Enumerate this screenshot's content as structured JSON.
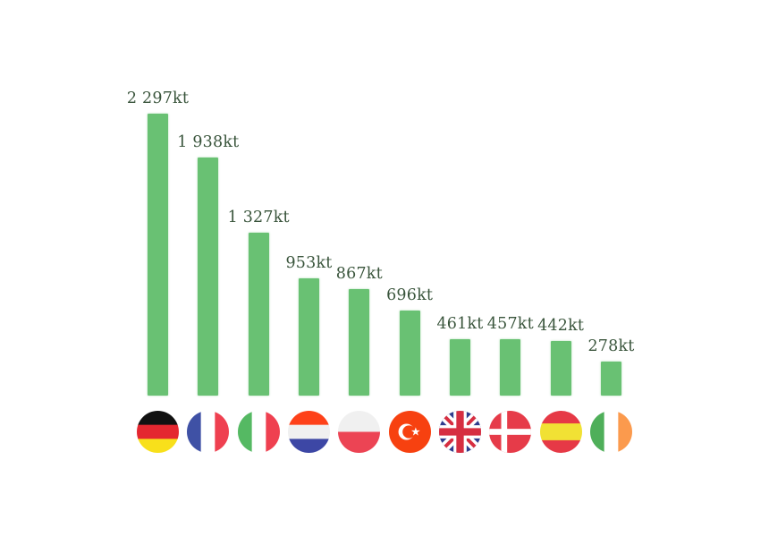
{
  "chart_data": {
    "type": "bar",
    "title": "",
    "unit": "kt",
    "categories": [
      "Germany",
      "France",
      "Italy",
      "Netherlands",
      "Poland",
      "Turkey",
      "United Kingdom",
      "Denmark",
      "Spain",
      "Ireland"
    ],
    "values": [
      2297,
      1938,
      1327,
      953,
      867,
      696,
      461,
      457,
      442,
      278
    ],
    "value_labels": [
      "2 297kt",
      "1 938kt",
      "1 327kt",
      "953kt",
      "867kt",
      "696kt",
      "461kt",
      "457kt",
      "442kt",
      "278kt"
    ],
    "xlabel": "",
    "ylabel": "",
    "ylim": [
      0,
      2297
    ],
    "grid": false,
    "legend": false,
    "axes_visible": false,
    "x_axis_tick_style": "circular country flag icons",
    "bar_color": "#69c173",
    "label_color": "#3a553c",
    "background_color": "#ffffff"
  },
  "flags": [
    {
      "country": "Germany",
      "style": "bands-h",
      "colors": [
        "#111111",
        "#e42730",
        "#f8e01b"
      ],
      "fractions": [
        0.333,
        0.334,
        0.333
      ]
    },
    {
      "country": "France",
      "style": "bands-v",
      "colors": [
        "#3f51a5",
        "#ffffff",
        "#ef4050"
      ],
      "fractions": [
        0.333,
        0.334,
        0.333
      ]
    },
    {
      "country": "Italy",
      "style": "bands-v",
      "colors": [
        "#55b963",
        "#ffffff",
        "#ef4050"
      ],
      "fractions": [
        0.333,
        0.334,
        0.333
      ]
    },
    {
      "country": "Netherlands",
      "style": "bands-h",
      "colors": [
        "#fe4119",
        "#f0f0f0",
        "#3d47a5"
      ],
      "fractions": [
        0.333,
        0.334,
        0.333
      ]
    },
    {
      "country": "Poland",
      "style": "bands-h",
      "colors": [
        "#f0f0f0",
        "#ec4454"
      ],
      "fractions": [
        0.5,
        0.5
      ]
    },
    {
      "country": "Turkey",
      "style": "crescent-star",
      "colors": [
        "#f74110",
        "#ffffff"
      ]
    },
    {
      "country": "United Kingdom",
      "style": "union-jack",
      "colors": [
        "#2e3c8e",
        "#d62e41",
        "#ffffff"
      ]
    },
    {
      "country": "Denmark",
      "style": "nordic-cross",
      "colors": [
        "#e63b49",
        "#ffffff"
      ]
    },
    {
      "country": "Spain",
      "style": "bands-h",
      "colors": [
        "#e63946",
        "#f1e134",
        "#e63946"
      ],
      "fractions": [
        0.3,
        0.4,
        0.3
      ]
    },
    {
      "country": "Ireland",
      "style": "bands-v",
      "colors": [
        "#4faf5a",
        "#ffffff",
        "#fb9a4d"
      ],
      "fractions": [
        0.333,
        0.334,
        0.333
      ]
    }
  ]
}
